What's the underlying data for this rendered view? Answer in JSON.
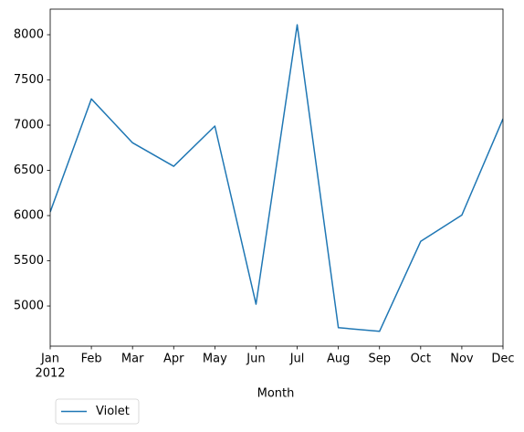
{
  "chart_data": {
    "type": "line",
    "categories": [
      "Jan",
      "Feb",
      "Mar",
      "Apr",
      "May",
      "Jun",
      "Jul",
      "Aug",
      "Sep",
      "Oct",
      "Nov",
      "Dec"
    ],
    "year_label": "2012",
    "x_label": "Month",
    "series": [
      {
        "name": "Violet",
        "color": "#1f77b4",
        "values": [
          6040,
          7290,
          6805,
          6545,
          6990,
          5020,
          8110,
          4760,
          4720,
          5715,
          6005,
          7070
        ]
      }
    ],
    "ylim": [
      4556,
      8283
    ],
    "yticks": [
      5000,
      5500,
      6000,
      6500,
      7000,
      7500,
      8000
    ],
    "grid": false,
    "legend": "below-left"
  }
}
